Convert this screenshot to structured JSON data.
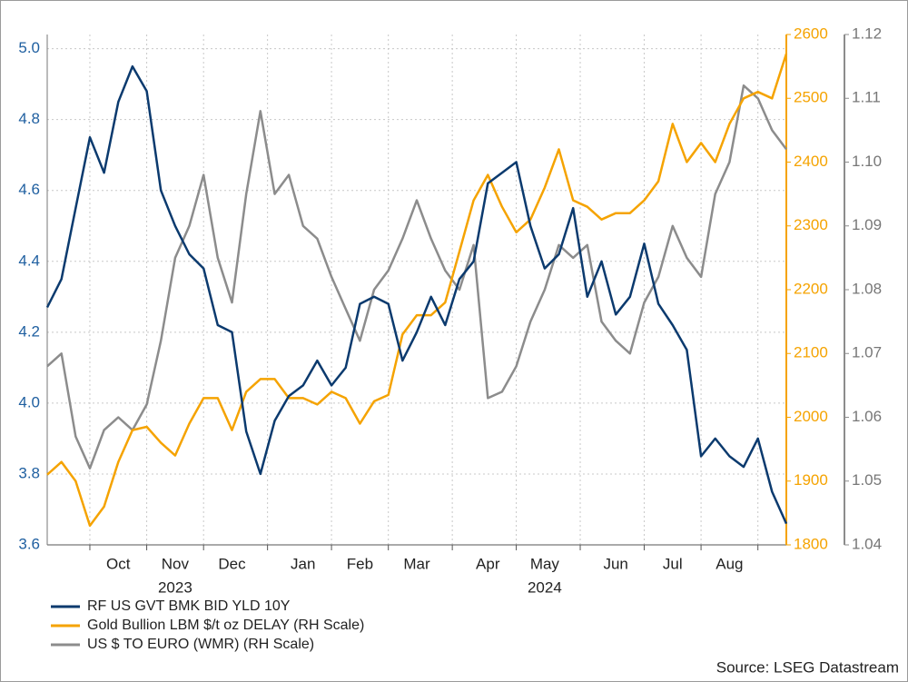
{
  "chart_data": {
    "type": "line",
    "categories": [
      null,
      null,
      null,
      null,
      null,
      "Oct",
      null,
      null,
      null,
      "Nov",
      null,
      null,
      null,
      "Dec",
      null,
      null,
      null,
      null,
      "Jan",
      null,
      null,
      null,
      "Feb",
      null,
      null,
      null,
      "Mar",
      null,
      null,
      null,
      null,
      "Apr",
      null,
      null,
      null,
      "May",
      null,
      null,
      null,
      null,
      "Jun",
      null,
      null,
      null,
      "Jul",
      null,
      null,
      null,
      "Aug",
      null,
      null,
      null,
      null
    ],
    "year_labels": [
      null,
      null,
      null,
      null,
      null,
      null,
      null,
      null,
      null,
      "2023",
      null,
      null,
      null,
      null,
      null,
      null,
      null,
      null,
      null,
      null,
      null,
      null,
      null,
      null,
      null,
      null,
      null,
      null,
      null,
      null,
      null,
      null,
      null,
      null,
      null,
      "2024",
      null,
      null,
      null,
      null,
      null,
      null,
      null,
      null,
      null,
      null,
      null,
      null,
      null,
      null,
      null,
      null,
      null
    ],
    "series": [
      {
        "name": "RF US GVT BMK BID YLD 10Y",
        "color": "#0b3a6e",
        "axis": "y",
        "values": [
          4.27,
          4.35,
          4.55,
          4.75,
          4.65,
          4.85,
          4.95,
          4.88,
          4.6,
          4.5,
          4.42,
          4.38,
          4.22,
          4.2,
          3.92,
          3.8,
          3.95,
          4.02,
          4.05,
          4.12,
          4.05,
          4.1,
          4.28,
          4.3,
          4.28,
          4.12,
          4.2,
          4.3,
          4.22,
          4.35,
          4.4,
          4.62,
          4.65,
          4.68,
          4.5,
          4.38,
          4.42,
          4.55,
          4.3,
          4.4,
          4.25,
          4.3,
          4.45,
          4.28,
          4.22,
          4.15,
          3.85,
          3.9,
          3.85,
          3.82,
          3.9,
          3.75,
          3.66
        ]
      },
      {
        "name": "Gold Bullion LBM $/t oz DELAY (RH Scale)",
        "color": "#f5a300",
        "axis": "y2",
        "values": [
          1910,
          1930,
          1900,
          1830,
          1860,
          1930,
          1980,
          1985,
          1960,
          1940,
          1990,
          2030,
          2030,
          1980,
          2040,
          2060,
          2060,
          2030,
          2030,
          2020,
          2040,
          2030,
          1990,
          2025,
          2035,
          2130,
          2160,
          2160,
          2180,
          2260,
          2340,
          2380,
          2330,
          2290,
          2310,
          2360,
          2420,
          2340,
          2330,
          2310,
          2320,
          2320,
          2340,
          2370,
          2460,
          2400,
          2430,
          2400,
          2460,
          2500,
          2510,
          2500,
          2570
        ]
      },
      {
        "name": "US $ TO EURO (WMR) (RH Scale)",
        "color": "#8c8c8c",
        "axis": "y3",
        "values": [
          1.068,
          1.07,
          1.057,
          1.052,
          1.058,
          1.06,
          1.058,
          1.062,
          1.072,
          1.085,
          1.09,
          1.098,
          1.085,
          1.078,
          1.095,
          1.108,
          1.095,
          1.098,
          1.09,
          1.088,
          1.082,
          1.077,
          1.072,
          1.08,
          1.083,
          1.088,
          1.094,
          1.088,
          1.083,
          1.08,
          1.087,
          1.063,
          1.064,
          1.068,
          1.075,
          1.08,
          1.087,
          1.085,
          1.087,
          1.075,
          1.072,
          1.07,
          1.078,
          1.082,
          1.09,
          1.085,
          1.082,
          1.095,
          1.1,
          1.112,
          1.11,
          1.105,
          1.102
        ]
      }
    ],
    "ylim": [
      3.6,
      5.04
    ],
    "yticks": [
      3.6,
      3.8,
      {
        "value": 4,
        "label": "4.0"
      },
      4.2,
      4.4,
      4.6,
      4.8,
      {
        "value": 5,
        "label": "5.0"
      }
    ],
    "y2lim": [
      1800,
      2600
    ],
    "y2ticks": [
      1800,
      1900,
      2000,
      2100,
      2200,
      2300,
      2400,
      2500,
      2600
    ],
    "y3lim": [
      1.04,
      1.12
    ],
    "y3ticks": [
      1.04,
      1.05,
      1.06,
      1.07,
      1.08,
      1.09,
      {
        "value": 1.1,
        "label": "1.10"
      },
      1.11,
      1.12
    ],
    "grid": true,
    "source": "Source: LSEG Datastream"
  }
}
